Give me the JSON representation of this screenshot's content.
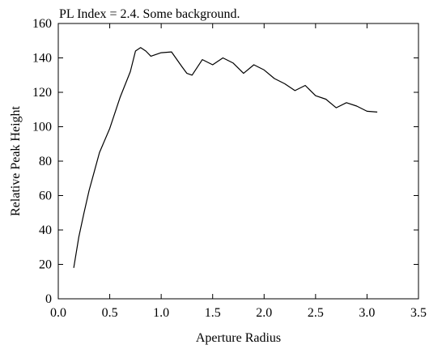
{
  "chart_data": {
    "type": "line",
    "title": "PL Index = 2.4. Some background.",
    "xlabel": "Aperture Radius",
    "ylabel": "Relative Peak Height",
    "xlim": [
      0.0,
      3.5
    ],
    "ylim": [
      0,
      160
    ],
    "xticks": [
      0.0,
      0.5,
      1.0,
      1.5,
      2.0,
      2.5,
      3.0,
      3.5
    ],
    "xtick_labels": [
      "0.0",
      "0.5",
      "1.0",
      "1.5",
      "2.0",
      "2.5",
      "3.0",
      "3.5"
    ],
    "yticks": [
      0,
      20,
      40,
      60,
      80,
      100,
      120,
      140,
      160
    ],
    "ytick_labels": [
      "0",
      "20",
      "40",
      "60",
      "80",
      "100",
      "120",
      "140",
      "160"
    ],
    "grid": false,
    "series": [
      {
        "x": [
          0.15,
          0.2,
          0.25,
          0.3,
          0.35,
          0.4,
          0.5,
          0.6,
          0.7,
          0.75,
          0.8,
          0.85,
          0.9,
          1.0,
          1.1,
          1.2,
          1.25,
          1.3,
          1.4,
          1.5,
          1.6,
          1.7,
          1.8,
          1.9,
          2.0,
          2.1,
          2.2,
          2.3,
          2.4,
          2.5,
          2.6,
          2.7,
          2.8,
          2.9,
          3.0,
          3.1
        ],
        "y": [
          18,
          36,
          50,
          63,
          74,
          85,
          99,
          117,
          132,
          144,
          146,
          144,
          141,
          143,
          143.5,
          135,
          131,
          130,
          139,
          136,
          140,
          137,
          131,
          136,
          133,
          128,
          125,
          121,
          124,
          118,
          116,
          111,
          114,
          112,
          109,
          108.5
        ]
      }
    ]
  }
}
